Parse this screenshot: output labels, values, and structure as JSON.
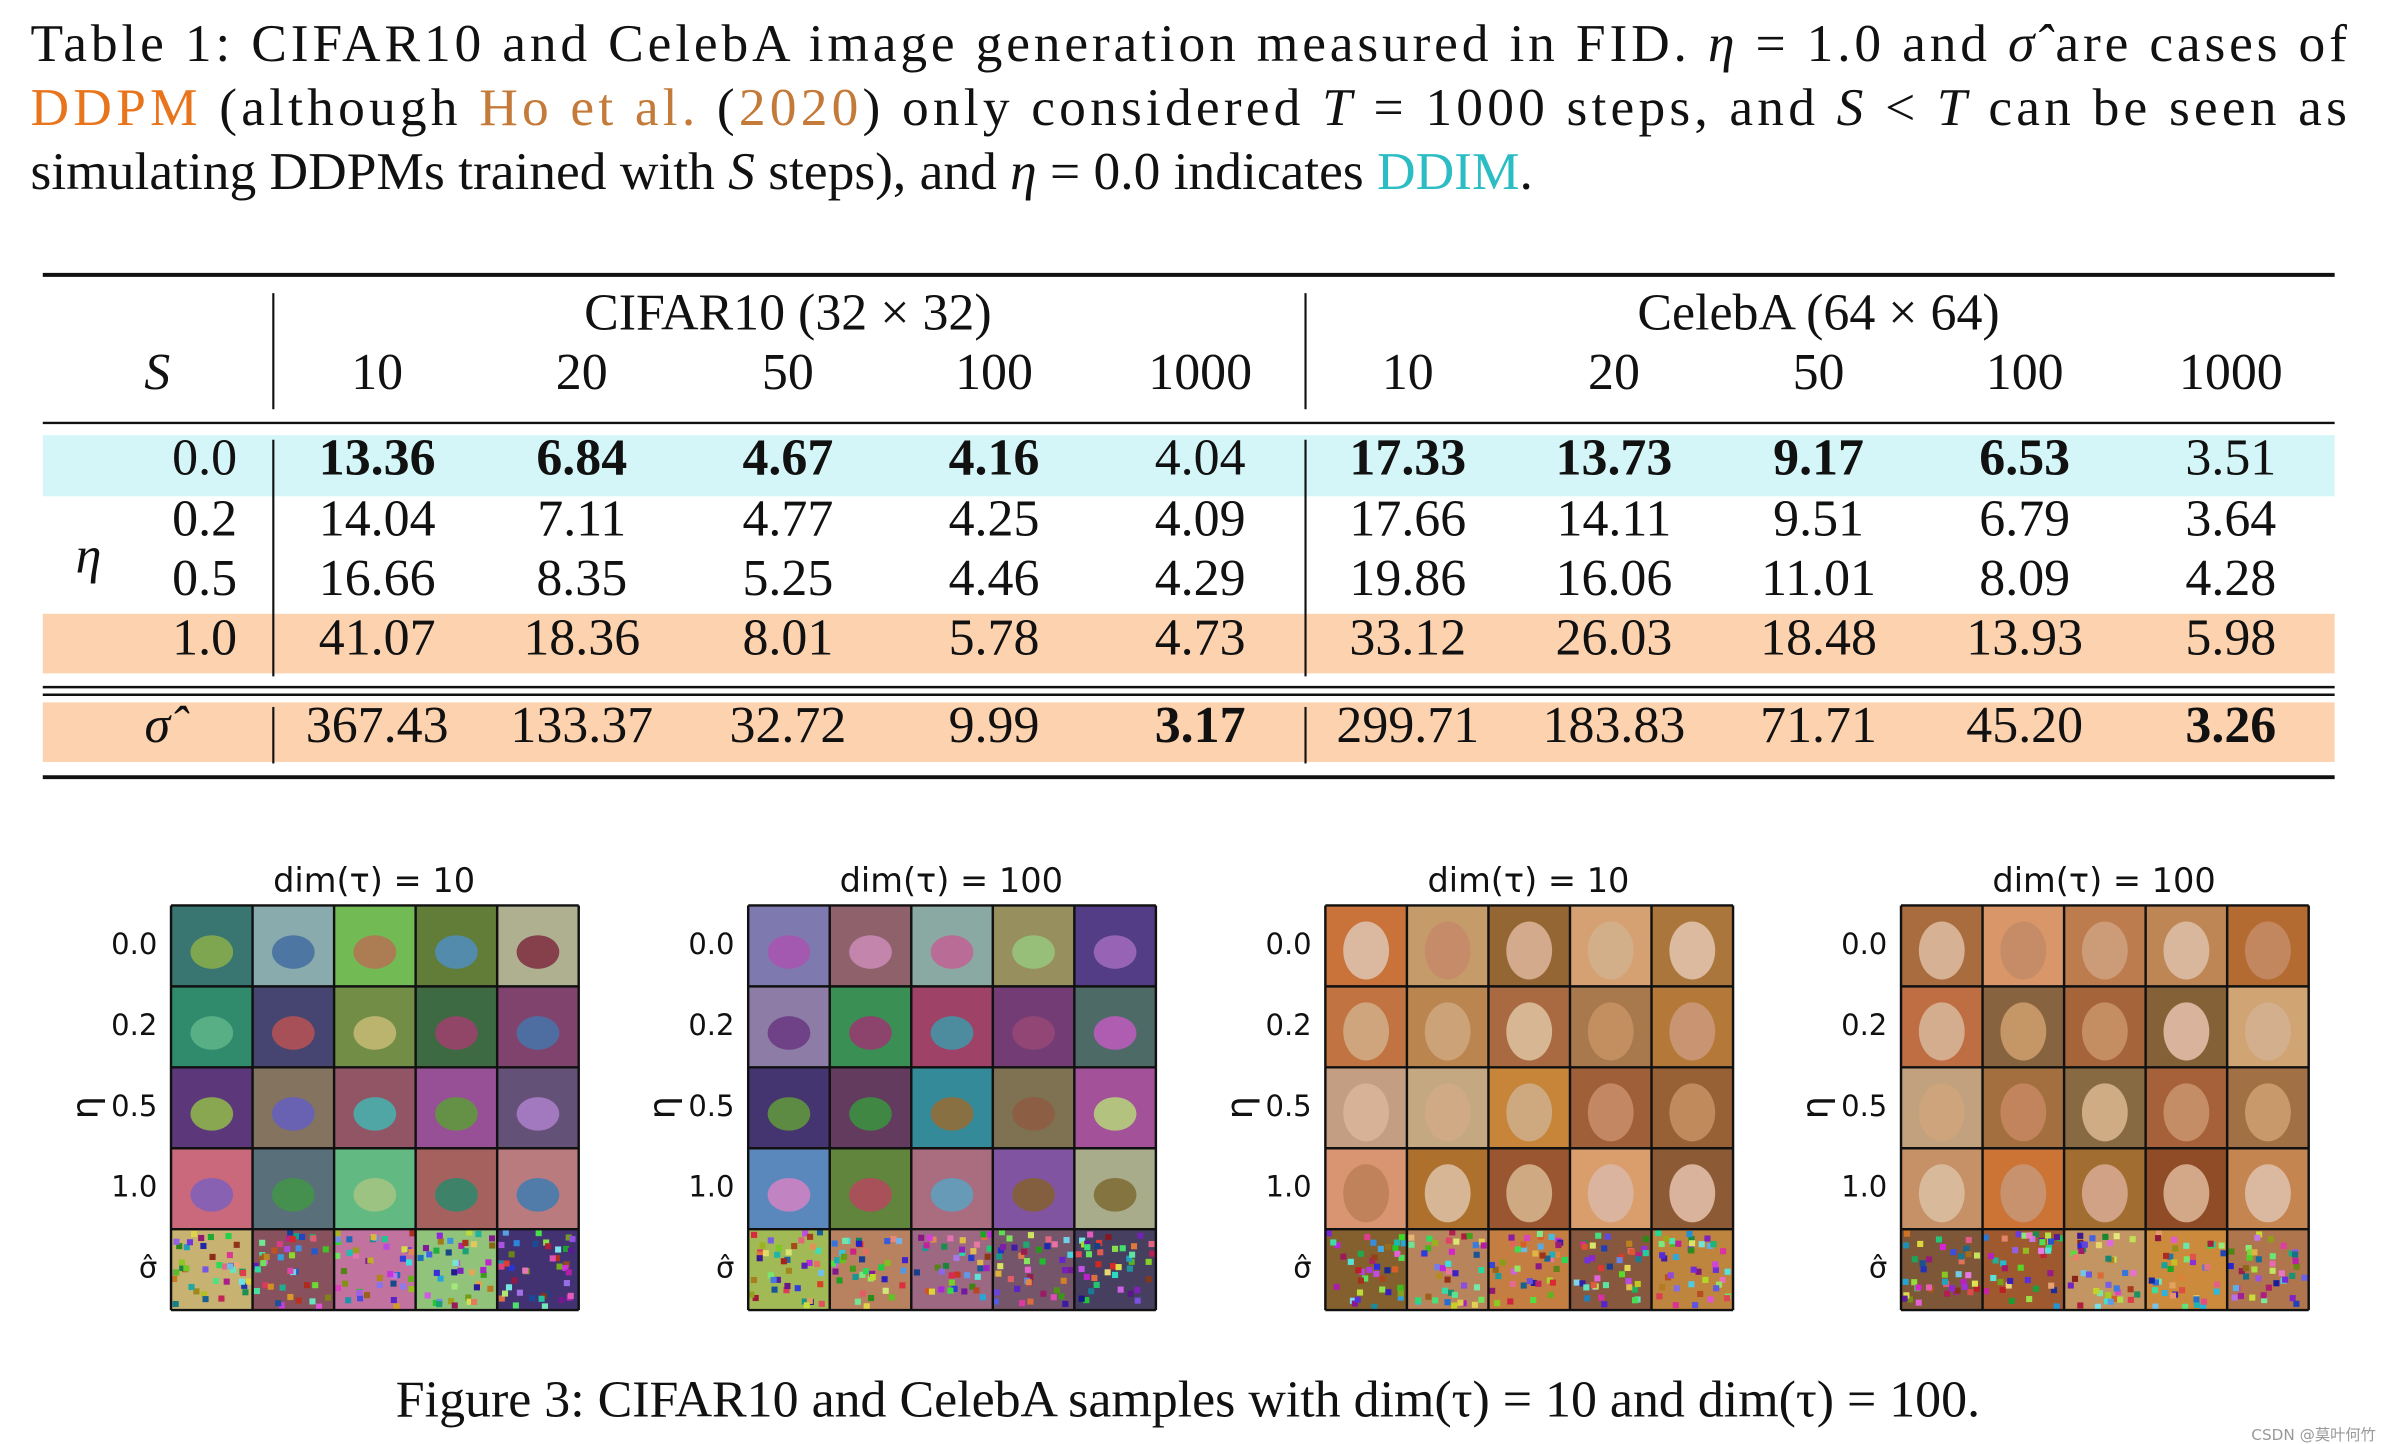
{
  "caption": {
    "lines": [
      [
        {
          "text": "Table 1: CIFAR10 and CelebA image generation measured in FID. "
        },
        {
          "text": "η",
          "italic": true
        },
        {
          "text": " = 1.0 and "
        },
        {
          "text": "σ̂",
          "italic": true
        },
        {
          "text": " are cases of"
        }
      ],
      [
        {
          "text": "DDPM",
          "color": "#e8741c"
        },
        {
          "text": " (although "
        },
        {
          "text": "Ho et al.",
          "color": "#c47a38"
        },
        {
          "text": " ("
        },
        {
          "text": "2020",
          "color": "#c47a38"
        },
        {
          "text": ") only considered "
        },
        {
          "text": "T",
          "italic": true
        },
        {
          "text": " = 1000 steps, and "
        },
        {
          "text": "S",
          "italic": true
        },
        {
          "text": " < "
        },
        {
          "text": "T",
          "italic": true
        },
        {
          "text": " can be seen as"
        }
      ],
      [
        {
          "text": "simulating DDPMs trained with "
        },
        {
          "text": "S",
          "italic": true
        },
        {
          "text": " steps), and "
        },
        {
          "text": "η",
          "italic": true
        },
        {
          "text": " = 0.0 indicates "
        },
        {
          "text": "DDIM",
          "color": "#2bbcc4"
        },
        {
          "text": "."
        }
      ]
    ]
  },
  "table": {
    "header": {
      "s_label": "S",
      "groups": [
        "CIFAR10 (32 × 32)",
        "CelebA (64 × 64)"
      ],
      "steps": [
        "10",
        "20",
        "50",
        "100",
        "1000",
        "10",
        "20",
        "50",
        "100",
        "1000"
      ]
    },
    "row_group_label": "η",
    "rows": [
      {
        "label": "0.0",
        "highlight": "#d4f6f8",
        "values": [
          "13.36",
          "6.84",
          "4.67",
          "4.16",
          "4.04",
          "17.33",
          "13.73",
          "9.17",
          "6.53",
          "3.51"
        ],
        "bold": [
          true,
          true,
          true,
          true,
          false,
          true,
          true,
          true,
          true,
          false
        ]
      },
      {
        "label": "0.2",
        "highlight": null,
        "values": [
          "14.04",
          "7.11",
          "4.77",
          "4.25",
          "4.09",
          "17.66",
          "14.11",
          "9.51",
          "6.79",
          "3.64"
        ],
        "bold": [
          false,
          false,
          false,
          false,
          false,
          false,
          false,
          false,
          false,
          false
        ]
      },
      {
        "label": "0.5",
        "highlight": null,
        "values": [
          "16.66",
          "8.35",
          "5.25",
          "4.46",
          "4.29",
          "19.86",
          "16.06",
          "11.01",
          "8.09",
          "4.28"
        ],
        "bold": [
          false,
          false,
          false,
          false,
          false,
          false,
          false,
          false,
          false,
          false
        ]
      },
      {
        "label": "1.0",
        "highlight": "#fdd2ae",
        "values": [
          "41.07",
          "18.36",
          "8.01",
          "5.78",
          "4.73",
          "33.12",
          "26.03",
          "18.48",
          "13.93",
          "5.98"
        ],
        "bold": [
          false,
          false,
          false,
          false,
          false,
          false,
          false,
          false,
          false,
          false
        ]
      },
      {
        "label": "σ̂",
        "highlight": "#fdd2ae",
        "values": [
          "367.43",
          "133.37",
          "32.72",
          "9.99",
          "3.17",
          "299.71",
          "183.83",
          "71.71",
          "45.20",
          "3.26"
        ],
        "bold": [
          false,
          false,
          false,
          false,
          true,
          false,
          false,
          false,
          false,
          true
        ]
      }
    ]
  },
  "figure": {
    "panels": [
      {
        "title": "dim(τ) = 10",
        "axis_label": "η",
        "row_labels": [
          "0.0",
          "0.2",
          "0.5",
          "1.0",
          "σ̂"
        ]
      },
      {
        "title": "dim(τ) = 100",
        "axis_label": "η",
        "row_labels": [
          "0.0",
          "0.2",
          "0.5",
          "1.0",
          "σ̂"
        ]
      },
      {
        "title": "dim(τ) = 10",
        "axis_label": "η",
        "row_labels": [
          "0.0",
          "0.2",
          "0.5",
          "1.0",
          "σ̂"
        ]
      },
      {
        "title": "dim(τ) = 100",
        "axis_label": "η",
        "row_labels": [
          "0.0",
          "0.2",
          "0.5",
          "1.0",
          "σ̂"
        ]
      }
    ],
    "caption": "Figure 3: CIFAR10 and CelebA samples with dim(τ) = 10 and dim(τ) = 100."
  },
  "watermark": "CSDN @莫叶何竹"
}
